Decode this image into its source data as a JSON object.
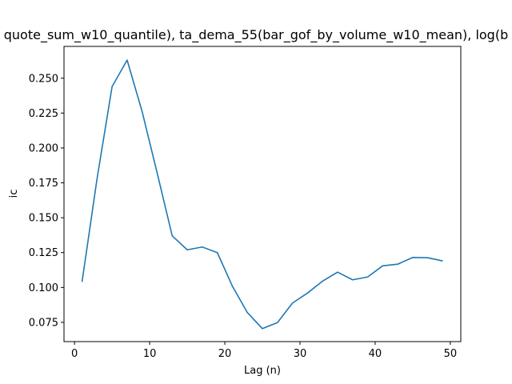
{
  "chart_data": {
    "type": "line",
    "title": "quote_sum_w10_quantile), ta_dema_55(bar_gof_by_volume_w10_mean), log(b",
    "xlabel": "Lag (n)",
    "ylabel": "ic",
    "xlim": [
      -1.4,
      51.4
    ],
    "ylim": [
      0.0612,
      0.2728
    ],
    "xticks": [
      0,
      10,
      20,
      30,
      40,
      50
    ],
    "yticks": [
      0.075,
      0.1,
      0.125,
      0.15,
      0.175,
      0.2,
      0.225,
      0.25
    ],
    "ytick_labels": [
      "0.075",
      "0.100",
      "0.125",
      "0.150",
      "0.175",
      "0.200",
      "0.225",
      "0.250"
    ],
    "grid": false,
    "color": "#1f77b4",
    "series": [
      {
        "x": [
          1,
          3,
          5,
          7,
          9,
          11,
          13,
          15,
          17,
          19,
          21,
          23,
          25,
          27,
          29,
          31,
          33,
          35,
          37,
          39,
          41,
          43,
          45,
          47,
          49
        ],
        "values": [
          0.104,
          0.178,
          0.244,
          0.263,
          0.226,
          0.182,
          0.137,
          0.127,
          0.129,
          0.125,
          0.101,
          0.082,
          0.0705,
          0.0748,
          0.0888,
          0.096,
          0.1045,
          0.111,
          0.1055,
          0.1075,
          0.1155,
          0.1167,
          0.1215,
          0.1213,
          0.119
        ]
      }
    ]
  }
}
